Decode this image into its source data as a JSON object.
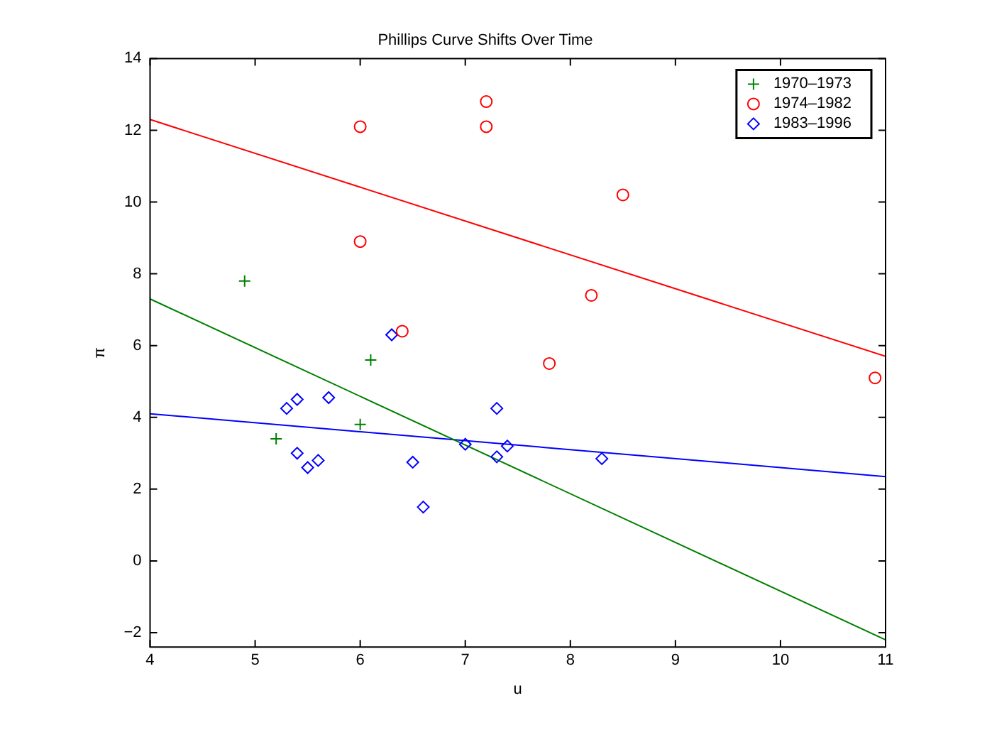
{
  "chart_data": {
    "type": "scatter",
    "title": "Phillips Curve Shifts Over Time",
    "xlabel": "u",
    "ylabel": "π",
    "xlim": [
      4,
      11
    ],
    "xticks": [
      4,
      5,
      6,
      7,
      8,
      9,
      10,
      11
    ],
    "ylim": [
      -2.4,
      14
    ],
    "yticks": [
      -2,
      0,
      2,
      4,
      6,
      8,
      10,
      12,
      14
    ],
    "grid": false,
    "legend": "top right",
    "series": [
      {
        "name": "1970–1973",
        "color": "#008000",
        "marker": "cross",
        "x": [
          4.9,
          5.2,
          6.0,
          6.1
        ],
        "values": [
          7.8,
          3.4,
          3.8,
          5.6
        ]
      },
      {
        "name": "1974–1982",
        "color": "#ff0000",
        "marker": "circle",
        "x": [
          6.0,
          6.0,
          6.4,
          7.2,
          7.2,
          7.8,
          8.2,
          8.5,
          10.9
        ],
        "values": [
          12.1,
          8.9,
          6.4,
          12.8,
          12.1,
          5.5,
          7.4,
          10.2,
          5.1
        ]
      },
      {
        "name": "1983–1996",
        "color": "#0000ff",
        "marker": "diamond",
        "x": [
          5.3,
          5.4,
          5.4,
          5.5,
          5.6,
          5.7,
          6.3,
          6.5,
          6.6,
          7.0,
          7.3,
          7.3,
          7.4,
          8.3
        ],
        "values": [
          4.25,
          4.5,
          3.0,
          2.6,
          2.8,
          4.55,
          6.3,
          2.75,
          1.5,
          3.25,
          4.25,
          2.9,
          3.2,
          2.85
        ]
      },
      {
        "type": "line",
        "color": "#008000",
        "marker": "none",
        "x": [
          4,
          11
        ],
        "values": [
          7.3,
          -2.2
        ]
      },
      {
        "type": "line",
        "color": "#ff0000",
        "marker": "none",
        "x": [
          4,
          11
        ],
        "values": [
          12.3,
          5.7
        ]
      },
      {
        "type": "line",
        "color": "#0000ff",
        "marker": "none",
        "x": [
          4,
          11
        ],
        "values": [
          4.1,
          2.35
        ]
      }
    ]
  }
}
